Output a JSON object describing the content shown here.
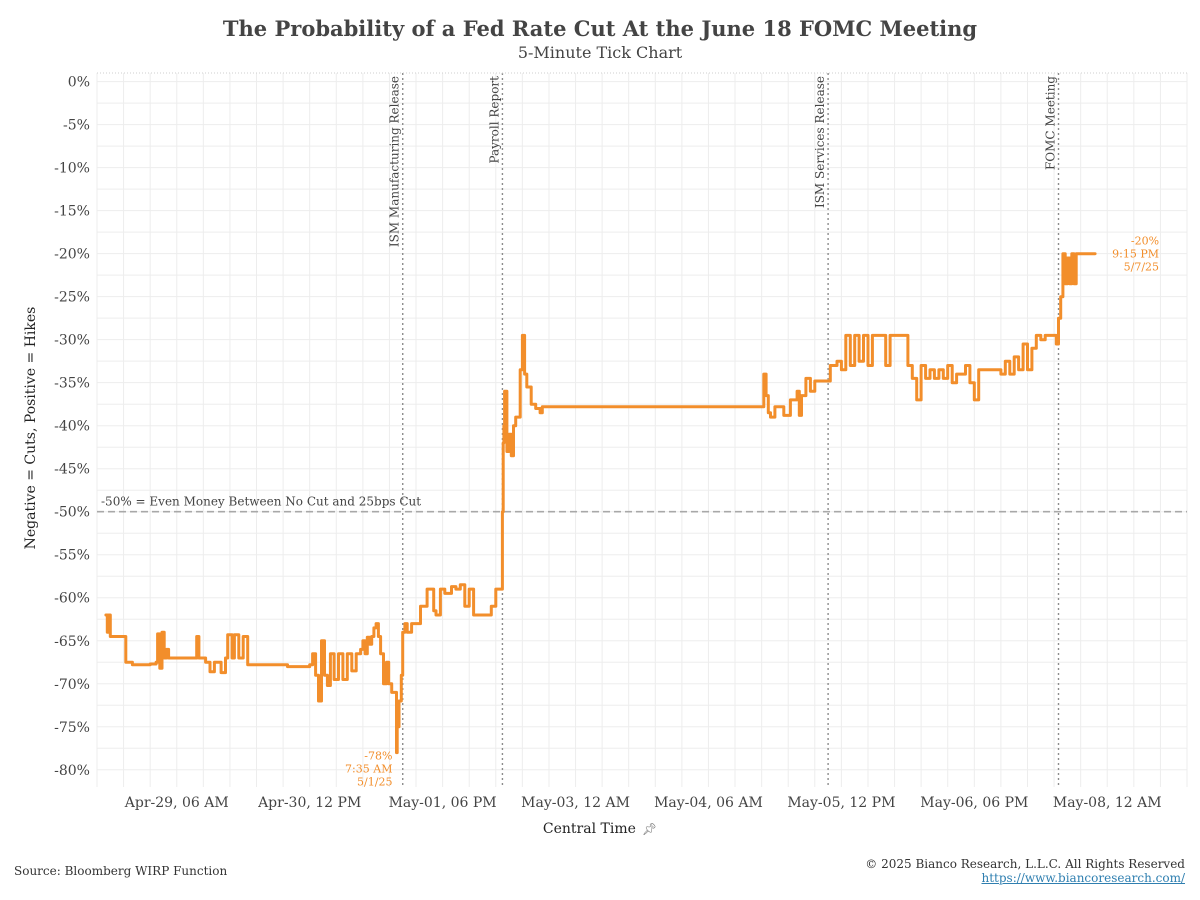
{
  "title": "The Probability of a Fed Rate Cut At the June 18 FOMC Meeting",
  "subtitle": "5-Minute Tick Chart",
  "footer": {
    "source": "Source: Bloomberg WIRP Function",
    "copyright": "© 2025 Bianco Research, L.L.C. All Rights Reserved",
    "url": "https://www.biancoresearch.com/"
  },
  "colors": {
    "line": "#f28e2b",
    "grid": "#ededed",
    "reference": "#a8a8a8",
    "event_line": "#8c8c8c"
  },
  "icons": {
    "xlabel_pin": "pin-icon"
  },
  "chart_data": {
    "type": "line",
    "title": "The Probability of a Fed Rate Cut At the June 18 FOMC Meeting",
    "subtitle": "5-Minute Tick Chart",
    "xlabel": "Central Time",
    "ylabel": "Negative = Cuts, Positive = Hikes",
    "ylim": [
      -82,
      1
    ],
    "xlim": [
      "2025-04-28 12:00",
      "2025-05-08 18:00"
    ],
    "yticks": [
      0,
      -5,
      -10,
      -15,
      -20,
      -25,
      -30,
      -35,
      -40,
      -45,
      -50,
      -55,
      -60,
      -65,
      -70,
      -75,
      -80
    ],
    "ytick_suffix": "%",
    "xticks": [
      {
        "t": "2025-04-29 06:00",
        "label": "Apr-29, 06 AM"
      },
      {
        "t": "2025-04-30 12:00",
        "label": "Apr-30, 12 PM"
      },
      {
        "t": "2025-05-01 18:00",
        "label": "May-01, 06 PM"
      },
      {
        "t": "2025-05-03 00:00",
        "label": "May-03, 12 AM"
      },
      {
        "t": "2025-05-04 06:00",
        "label": "May-04, 06 AM"
      },
      {
        "t": "2025-05-05 12:00",
        "label": "May-05, 12 PM"
      },
      {
        "t": "2025-05-06 18:00",
        "label": "May-06, 06 PM"
      },
      {
        "t": "2025-05-08 00:00",
        "label": "May-08, 12 AM"
      }
    ],
    "grid": true,
    "reference_line": {
      "y": -50,
      "label": "-50% = Even Money Between No Cut and 25bps Cut"
    },
    "events": [
      {
        "t": "2025-05-01 09:00",
        "label": "ISM Manufacturing Release"
      },
      {
        "t": "2025-05-02 07:30",
        "label": "Payroll Report"
      },
      {
        "t": "2025-05-05 09:00",
        "label": "ISM Services  Release"
      },
      {
        "t": "2025-05-07 13:00",
        "label": "FOMC Meeting"
      }
    ],
    "annotations": [
      {
        "t": "2025-05-01 07:35",
        "y": -78,
        "lines": [
          "-78%",
          "7:35 AM",
          "5/1/25"
        ],
        "position": "left-below"
      },
      {
        "t": "2025-05-07 21:15",
        "y": -20,
        "lines": [
          "-20%",
          "9:15 PM",
          "5/7/25"
        ],
        "position": "right"
      }
    ],
    "series": [
      {
        "points": [
          [
            "2025-04-28 14:00",
            -62
          ],
          [
            "2025-04-28 14:20",
            -64
          ],
          [
            "2025-04-28 14:40",
            -62
          ],
          [
            "2025-04-28 15:00",
            -64.5
          ],
          [
            "2025-04-28 17:00",
            -64.5
          ],
          [
            "2025-04-28 18:30",
            -67.5
          ],
          [
            "2025-04-28 20:00",
            -67.8
          ],
          [
            "2025-04-29 00:00",
            -67.7
          ],
          [
            "2025-04-29 01:20",
            -67.5
          ],
          [
            "2025-04-29 01:40",
            -64.2
          ],
          [
            "2025-04-29 02:10",
            -68.2
          ],
          [
            "2025-04-29 02:40",
            -64
          ],
          [
            "2025-04-29 03:10",
            -67
          ],
          [
            "2025-04-29 03:40",
            -66
          ],
          [
            "2025-04-29 04:10",
            -67
          ],
          [
            "2025-04-29 10:00",
            -67
          ],
          [
            "2025-04-29 10:30",
            -64.5
          ],
          [
            "2025-04-29 11:00",
            -67
          ],
          [
            "2025-04-29 12:30",
            -67.5
          ],
          [
            "2025-04-29 13:30",
            -68.6
          ],
          [
            "2025-04-29 14:30",
            -67.5
          ],
          [
            "2025-04-29 16:00",
            -68.7
          ],
          [
            "2025-04-29 17:00",
            -67
          ],
          [
            "2025-04-29 17:30",
            -64.3
          ],
          [
            "2025-04-29 18:30",
            -67
          ],
          [
            "2025-04-29 19:00",
            -64.3
          ],
          [
            "2025-04-29 20:00",
            -67
          ],
          [
            "2025-04-29 21:00",
            -64.5
          ],
          [
            "2025-04-29 22:00",
            -67.8
          ],
          [
            "2025-04-30 06:00",
            -67.8
          ],
          [
            "2025-04-30 07:00",
            -68
          ],
          [
            "2025-04-30 12:00",
            -67.8
          ],
          [
            "2025-04-30 12:40",
            -66.5
          ],
          [
            "2025-04-30 13:20",
            -69
          ],
          [
            "2025-04-30 14:00",
            -72
          ],
          [
            "2025-04-30 14:40",
            -65
          ],
          [
            "2025-04-30 15:20",
            -69
          ],
          [
            "2025-04-30 16:00",
            -70.2
          ],
          [
            "2025-04-30 16:40",
            -66.5
          ],
          [
            "2025-04-30 17:30",
            -69.5
          ],
          [
            "2025-04-30 18:30",
            -66.5
          ],
          [
            "2025-04-30 19:30",
            -69.5
          ],
          [
            "2025-04-30 20:30",
            -66.5
          ],
          [
            "2025-04-30 21:30",
            -68.5
          ],
          [
            "2025-04-30 22:30",
            -66.5
          ],
          [
            "2025-04-30 23:30",
            -66
          ],
          [
            "2025-05-01 00:00",
            -65
          ],
          [
            "2025-05-01 00:30",
            -66.5
          ],
          [
            "2025-05-01 01:00",
            -64.6
          ],
          [
            "2025-05-01 01:30",
            -65.4
          ],
          [
            "2025-05-01 02:00",
            -64.5
          ],
          [
            "2025-05-01 02:30",
            -63.5
          ],
          [
            "2025-05-01 03:00",
            -63
          ],
          [
            "2025-05-01 03:30",
            -64.5
          ],
          [
            "2025-05-01 04:00",
            -66.5
          ],
          [
            "2025-05-01 04:40",
            -70
          ],
          [
            "2025-05-01 05:20",
            -67.5
          ],
          [
            "2025-05-01 05:50",
            -70
          ],
          [
            "2025-05-01 06:30",
            -71
          ],
          [
            "2025-05-01 07:35",
            -78
          ],
          [
            "2025-05-01 07:45",
            -75
          ],
          [
            "2025-05-01 08:10",
            -72
          ],
          [
            "2025-05-01 08:40",
            -69
          ],
          [
            "2025-05-01 09:00",
            -64
          ],
          [
            "2025-05-01 09:30",
            -63
          ],
          [
            "2025-05-01 10:00",
            -64
          ],
          [
            "2025-05-01 11:00",
            -63
          ],
          [
            "2025-05-01 13:00",
            -61
          ],
          [
            "2025-05-01 14:30",
            -59
          ],
          [
            "2025-05-01 15:30",
            -59
          ],
          [
            "2025-05-01 16:00",
            -61.5
          ],
          [
            "2025-05-01 16:30",
            -62
          ],
          [
            "2025-05-01 17:30",
            -59
          ],
          [
            "2025-05-01 18:30",
            -59.5
          ],
          [
            "2025-05-01 20:00",
            -58.7
          ],
          [
            "2025-05-01 21:00",
            -59
          ],
          [
            "2025-05-01 22:00",
            -58.5
          ],
          [
            "2025-05-01 23:00",
            -61
          ],
          [
            "2025-05-02 00:00",
            -59
          ],
          [
            "2025-05-02 01:00",
            -62
          ],
          [
            "2025-05-02 03:00",
            -62
          ],
          [
            "2025-05-02 05:00",
            -61
          ],
          [
            "2025-05-02 06:00",
            -59
          ],
          [
            "2025-05-02 07:00",
            -59
          ],
          [
            "2025-05-02 07:30",
            -50
          ],
          [
            "2025-05-02 07:40",
            -42
          ],
          [
            "2025-05-02 07:50",
            -40
          ],
          [
            "2025-05-02 08:00",
            -36
          ],
          [
            "2025-05-02 08:30",
            -43
          ],
          [
            "2025-05-02 09:00",
            -41
          ],
          [
            "2025-05-02 09:30",
            -43.5
          ],
          [
            "2025-05-02 10:00",
            -40
          ],
          [
            "2025-05-02 10:30",
            -39
          ],
          [
            "2025-05-02 11:30",
            -33.5
          ],
          [
            "2025-05-02 12:00",
            -29.5
          ],
          [
            "2025-05-02 12:30",
            -34
          ],
          [
            "2025-05-02 13:00",
            -35.5
          ],
          [
            "2025-05-02 14:00",
            -37.5
          ],
          [
            "2025-05-02 15:00",
            -38
          ],
          [
            "2025-05-02 16:00",
            -38.5
          ],
          [
            "2025-05-02 16:30",
            -37.8
          ],
          [
            "2025-05-04 18:00",
            -37.8
          ],
          [
            "2025-05-04 18:30",
            -34
          ],
          [
            "2025-05-04 19:00",
            -36.5
          ],
          [
            "2025-05-04 19:30",
            -38.5
          ],
          [
            "2025-05-04 20:00",
            -39
          ],
          [
            "2025-05-04 21:00",
            -37.8
          ],
          [
            "2025-05-04 23:00",
            -38.8
          ],
          [
            "2025-05-05 00:30",
            -37
          ],
          [
            "2025-05-05 02:00",
            -36
          ],
          [
            "2025-05-05 02:30",
            -38.8
          ],
          [
            "2025-05-05 03:00",
            -36.5
          ],
          [
            "2025-05-05 04:00",
            -34.5
          ],
          [
            "2025-05-05 05:00",
            -36
          ],
          [
            "2025-05-05 06:00",
            -34.8
          ],
          [
            "2025-05-05 09:00",
            -34.8
          ],
          [
            "2025-05-05 09:30",
            -33
          ],
          [
            "2025-05-05 11:00",
            -32.5
          ],
          [
            "2025-05-05 12:00",
            -33.5
          ],
          [
            "2025-05-05 13:00",
            -29.5
          ],
          [
            "2025-05-05 14:00",
            -33
          ],
          [
            "2025-05-05 15:00",
            -29.5
          ],
          [
            "2025-05-05 16:00",
            -32.5
          ],
          [
            "2025-05-05 17:00",
            -29.5
          ],
          [
            "2025-05-05 18:00",
            -33
          ],
          [
            "2025-05-05 19:00",
            -29.5
          ],
          [
            "2025-05-05 21:00",
            -29.5
          ],
          [
            "2025-05-05 22:00",
            -33
          ],
          [
            "2025-05-05 23:00",
            -29.5
          ],
          [
            "2025-05-06 02:00",
            -29.5
          ],
          [
            "2025-05-06 03:00",
            -33
          ],
          [
            "2025-05-06 04:00",
            -34.5
          ],
          [
            "2025-05-06 05:00",
            -37
          ],
          [
            "2025-05-06 06:00",
            -33
          ],
          [
            "2025-05-06 07:00",
            -34.5
          ],
          [
            "2025-05-06 08:00",
            -33.5
          ],
          [
            "2025-05-06 09:00",
            -34.5
          ],
          [
            "2025-05-06 10:00",
            -33.5
          ],
          [
            "2025-05-06 11:00",
            -34.5
          ],
          [
            "2025-05-06 12:00",
            -33
          ],
          [
            "2025-05-06 13:00",
            -35
          ],
          [
            "2025-05-06 14:00",
            -34
          ],
          [
            "2025-05-06 16:00",
            -33
          ],
          [
            "2025-05-06 17:00",
            -35
          ],
          [
            "2025-05-06 18:00",
            -37
          ],
          [
            "2025-05-06 19:00",
            -33.5
          ],
          [
            "2025-05-06 22:00",
            -33.5
          ],
          [
            "2025-05-07 00:00",
            -34
          ],
          [
            "2025-05-07 01:00",
            -32.5
          ],
          [
            "2025-05-07 02:00",
            -34
          ],
          [
            "2025-05-07 03:00",
            -32
          ],
          [
            "2025-05-07 04:00",
            -33.5
          ],
          [
            "2025-05-07 05:00",
            -30.5
          ],
          [
            "2025-05-07 06:00",
            -33.5
          ],
          [
            "2025-05-07 07:00",
            -31
          ],
          [
            "2025-05-07 08:00",
            -29.5
          ],
          [
            "2025-05-07 09:00",
            -30
          ],
          [
            "2025-05-07 10:00",
            -29.5
          ],
          [
            "2025-05-07 12:00",
            -29.5
          ],
          [
            "2025-05-07 12:30",
            -30.5
          ],
          [
            "2025-05-07 13:00",
            -27.5
          ],
          [
            "2025-05-07 13:30",
            -25
          ],
          [
            "2025-05-07 14:00",
            -20
          ],
          [
            "2025-05-07 14:30",
            -23.5
          ],
          [
            "2025-05-07 15:00",
            -20.5
          ],
          [
            "2025-05-07 15:30",
            -23.5
          ],
          [
            "2025-05-07 16:00",
            -20
          ],
          [
            "2025-05-07 16:30",
            -23.5
          ],
          [
            "2025-05-07 17:00",
            -20
          ],
          [
            "2025-05-07 21:15",
            -20
          ]
        ]
      }
    ]
  }
}
